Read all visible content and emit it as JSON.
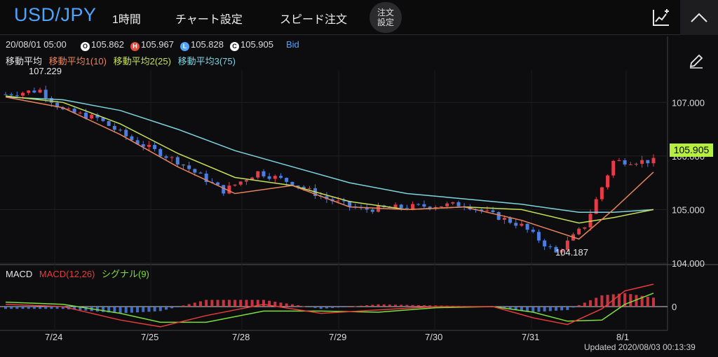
{
  "header": {
    "pair": "USD/JPY",
    "timeframe": "1時間",
    "chart_settings": "チャート設定",
    "speed_order": "スピード注文",
    "order_settings_line1": "注文",
    "order_settings_line2": "設定"
  },
  "ohlc": {
    "datetime": "20/08/01 05:00",
    "open": "105.862",
    "high": "105.967",
    "low": "105.828",
    "close": "105.905",
    "side": "Bid",
    "badge_open": "O",
    "badge_high": "H",
    "badge_low": "L",
    "badge_close": "C"
  },
  "moving_averages": {
    "title": "移動平均",
    "ma1": "移動平均1(10)",
    "ma2": "移動平均2(25)",
    "ma3": "移動平均3(75)"
  },
  "annotations": {
    "high_label": "107.229",
    "low_label": "104.187",
    "current_price": "105.905"
  },
  "macd_legend": {
    "title": "MACD",
    "macd": "MACD(12,26)",
    "signal": "シグナル(9)"
  },
  "updated": "Updated  2020/08/03 00:13:39",
  "colors": {
    "pair": "#4ea3ff",
    "ma1": "#e8845a",
    "ma2": "#c5e05a",
    "ma3": "#7fd4e0",
    "up": "#e53c4a",
    "down": "#4c7de0",
    "current_price_bg": "#b6ef3e",
    "macd_line": "#e83a3a",
    "signal_line": "#7be03c"
  },
  "chart_data": {
    "type": "candlestick",
    "price_axis": {
      "ticks": [
        "107.000",
        "106.000",
        "105.000",
        "104.000"
      ]
    },
    "macd_axis": {
      "ticks": [
        "0"
      ]
    },
    "x_labels": [
      "7/24",
      "7/25",
      "7/28",
      "7/29",
      "7/30",
      "7/31",
      "8/1"
    ],
    "price_key_points": [
      {
        "x": 0,
        "y": 107.15
      },
      {
        "x": 6,
        "y": 107.229
      },
      {
        "x": 10,
        "y": 106.85
      },
      {
        "x": 16,
        "y": 106.7
      },
      {
        "x": 22,
        "y": 106.3
      },
      {
        "x": 30,
        "y": 105.9
      },
      {
        "x": 38,
        "y": 105.35
      },
      {
        "x": 44,
        "y": 105.7
      },
      {
        "x": 50,
        "y": 105.5
      },
      {
        "x": 56,
        "y": 105.2
      },
      {
        "x": 62,
        "y": 105.0
      },
      {
        "x": 70,
        "y": 105.05
      },
      {
        "x": 80,
        "y": 105.1
      },
      {
        "x": 90,
        "y": 104.7
      },
      {
        "x": 96,
        "y": 104.187
      },
      {
        "x": 101,
        "y": 104.7
      },
      {
        "x": 106,
        "y": 105.9
      },
      {
        "x": 113,
        "y": 105.905
      }
    ],
    "ma1_points": [
      [
        0,
        107.1
      ],
      [
        10,
        106.9
      ],
      [
        20,
        106.4
      ],
      [
        30,
        105.8
      ],
      [
        40,
        105.3
      ],
      [
        50,
        105.45
      ],
      [
        60,
        105.05
      ],
      [
        70,
        105.0
      ],
      [
        80,
        105.05
      ],
      [
        90,
        104.8
      ],
      [
        100,
        104.45
      ],
      [
        106,
        105.0
      ],
      [
        113,
        105.7
      ]
    ],
    "ma2_points": [
      [
        0,
        107.12
      ],
      [
        10,
        107.0
      ],
      [
        20,
        106.6
      ],
      [
        30,
        106.05
      ],
      [
        40,
        105.6
      ],
      [
        50,
        105.45
      ],
      [
        60,
        105.15
      ],
      [
        70,
        105.0
      ],
      [
        80,
        105.05
      ],
      [
        90,
        105.0
      ],
      [
        100,
        104.75
      ],
      [
        106,
        104.85
      ],
      [
        113,
        105.0
      ]
    ],
    "ma3_points": [
      [
        0,
        107.1
      ],
      [
        10,
        107.05
      ],
      [
        20,
        106.85
      ],
      [
        30,
        106.5
      ],
      [
        40,
        106.1
      ],
      [
        50,
        105.8
      ],
      [
        60,
        105.5
      ],
      [
        70,
        105.3
      ],
      [
        80,
        105.2
      ],
      [
        90,
        105.1
      ],
      [
        100,
        104.95
      ],
      [
        106,
        104.95
      ],
      [
        113,
        105.0
      ]
    ],
    "macd_points": [
      [
        0,
        0.02
      ],
      [
        10,
        0.0
      ],
      [
        20,
        -0.12
      ],
      [
        27,
        -0.18
      ],
      [
        35,
        -0.08
      ],
      [
        45,
        0.02
      ],
      [
        55,
        -0.06
      ],
      [
        65,
        -0.03
      ],
      [
        75,
        0.0
      ],
      [
        85,
        0.0
      ],
      [
        92,
        -0.1
      ],
      [
        98,
        -0.16
      ],
      [
        104,
        -0.02
      ],
      [
        108,
        0.14
      ],
      [
        113,
        0.2
      ]
    ],
    "signal_points": [
      [
        0,
        0.04
      ],
      [
        10,
        0.02
      ],
      [
        20,
        -0.06
      ],
      [
        27,
        -0.14
      ],
      [
        35,
        -0.14
      ],
      [
        45,
        -0.04
      ],
      [
        55,
        -0.04
      ],
      [
        65,
        -0.05
      ],
      [
        75,
        -0.01
      ],
      [
        85,
        0.0
      ],
      [
        92,
        -0.05
      ],
      [
        98,
        -0.13
      ],
      [
        104,
        -0.12
      ],
      [
        108,
        0.02
      ],
      [
        113,
        0.12
      ]
    ],
    "price_range": [
      104.0,
      107.5
    ]
  }
}
